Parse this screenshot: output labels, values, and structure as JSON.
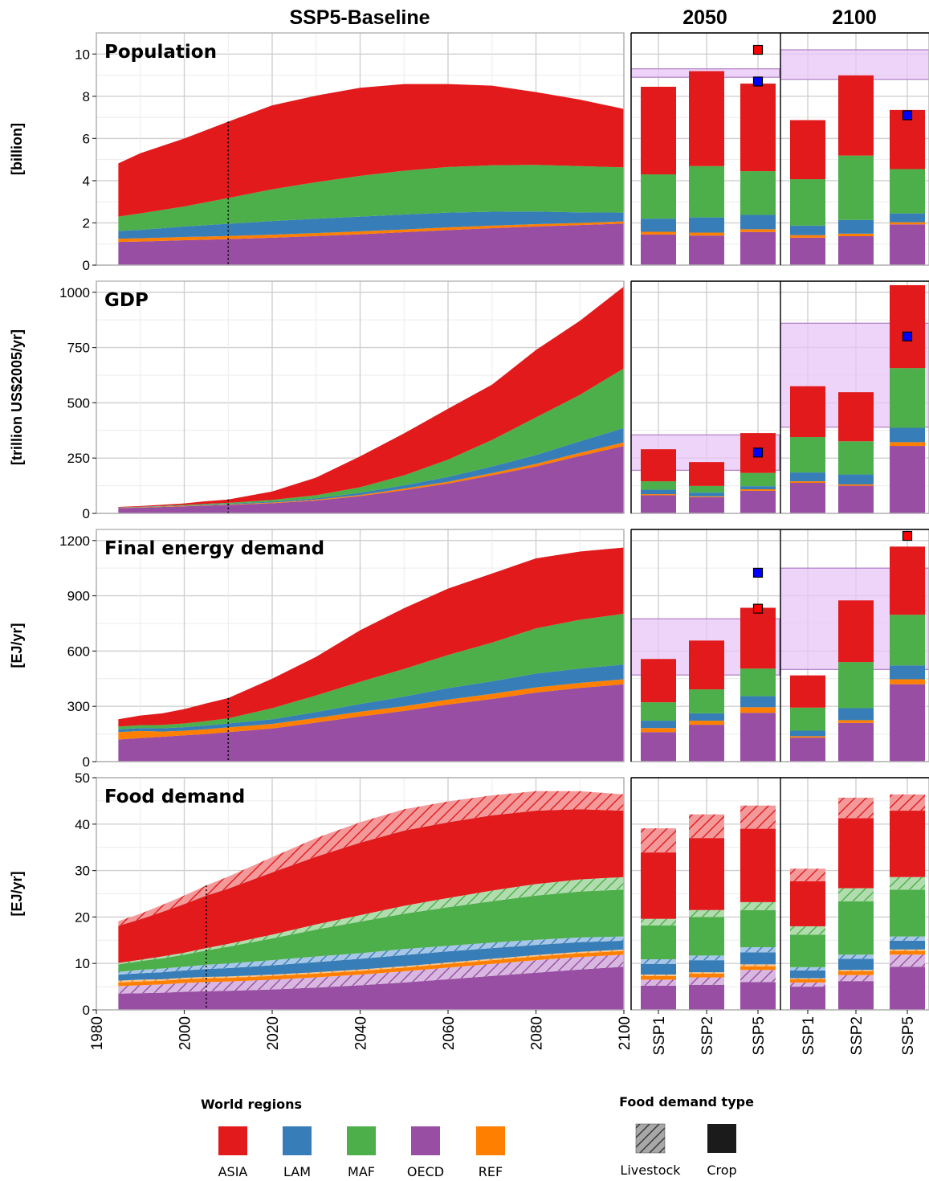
{
  "figure": {
    "column_strips": [
      "SSP5-Baseline",
      "2050",
      "2100"
    ],
    "region_colors": {
      "ASIA": "#e31a1c",
      "LAM": "#377eb8",
      "MAF": "#4daf4a",
      "OECD": "#984ea3",
      "REF": "#ff7f00"
    },
    "range_band_color": "#e8c6f6",
    "marker_colors": {
      "red": "#ff0000",
      "blue": "#0000ff"
    }
  },
  "legend": {
    "regions_title": "World regions",
    "regions": [
      "ASIA",
      "LAM",
      "MAF",
      "OECD",
      "REF"
    ],
    "food_type_title": "Food demand type",
    "food_types": [
      "Livestock",
      "Crop"
    ]
  },
  "chart_data": [
    {
      "type": "area",
      "title": "Population",
      "ylabel": "[billion]",
      "ylim": [
        0,
        11
      ],
      "yticks": [
        0,
        2,
        4,
        6,
        8,
        10
      ],
      "xlim": [
        1980,
        2100
      ],
      "xticks": [
        1980,
        2000,
        2020,
        2040,
        2060,
        2080,
        2100
      ],
      "history_end": 2010,
      "x": [
        1985,
        1990,
        2000,
        2010,
        2020,
        2030,
        2040,
        2050,
        2060,
        2070,
        2080,
        2090,
        2100
      ],
      "series": [
        {
          "name": "OECD",
          "values": [
            1.1,
            1.12,
            1.18,
            1.23,
            1.3,
            1.38,
            1.46,
            1.56,
            1.66,
            1.75,
            1.83,
            1.9,
            1.97
          ]
        },
        {
          "name": "REF",
          "values": [
            0.15,
            0.15,
            0.15,
            0.15,
            0.14,
            0.14,
            0.14,
            0.13,
            0.13,
            0.12,
            0.11,
            0.1,
            0.1
          ]
        },
        {
          "name": "LAM",
          "values": [
            0.37,
            0.4,
            0.5,
            0.58,
            0.65,
            0.68,
            0.7,
            0.71,
            0.7,
            0.66,
            0.6,
            0.5,
            0.42
          ]
        },
        {
          "name": "MAF",
          "values": [
            0.68,
            0.78,
            0.95,
            1.22,
            1.5,
            1.73,
            1.93,
            2.07,
            2.16,
            2.2,
            2.21,
            2.19,
            2.14
          ]
        },
        {
          "name": "ASIA",
          "values": [
            2.52,
            2.85,
            3.22,
            3.62,
            3.98,
            4.1,
            4.17,
            4.11,
            3.93,
            3.77,
            3.45,
            3.15,
            2.77
          ]
        }
      ],
      "bars": {
        "2050": {
          "SSP1": [
            1.45,
            0.13,
            0.62,
            2.1,
            4.15
          ],
          "SSP2": [
            1.4,
            0.14,
            0.72,
            2.43,
            4.5
          ],
          "SSP5": [
            1.57,
            0.13,
            0.68,
            2.07,
            4.15
          ]
        },
        "2100": {
          "SSP1": [
            1.3,
            0.12,
            0.45,
            2.2,
            2.8
          ],
          "SSP2": [
            1.37,
            0.12,
            0.65,
            3.05,
            3.8
          ],
          "SSP5": [
            1.93,
            0.1,
            0.42,
            2.1,
            2.8
          ]
        }
      },
      "ranges": {
        "2050": [
          8.9,
          9.3
        ],
        "2100": [
          8.8,
          10.2
        ]
      },
      "markers": {
        "2050": [
          {
            "scenario": "SSP5",
            "value": 10.2,
            "color": "red"
          },
          {
            "scenario": "SSP5",
            "value": 8.7,
            "color": "blue"
          }
        ],
        "2100": [
          {
            "scenario": "SSP5",
            "value": 7.1,
            "color": "blue"
          }
        ]
      }
    },
    {
      "type": "area",
      "title": "GDP",
      "ylabel": "[trillion US$2005/yr]",
      "ylim": [
        0,
        1050
      ],
      "yticks": [
        0,
        250,
        500,
        750,
        1000
      ],
      "xlim": [
        1980,
        2100
      ],
      "xticks": [
        1980,
        2000,
        2020,
        2040,
        2060,
        2080,
        2100
      ],
      "history_end": 2010,
      "x": [
        1985,
        1990,
        2000,
        2005,
        2010,
        2020,
        2030,
        2040,
        2050,
        2060,
        2070,
        2080,
        2090,
        2100
      ],
      "series": [
        {
          "name": "OECD",
          "values": [
            24,
            26,
            32,
            35,
            38,
            46,
            58,
            78,
            105,
            135,
            172,
            212,
            260,
            305
          ]
        },
        {
          "name": "REF",
          "values": [
            1,
            1.5,
            2,
            2,
            2.5,
            3,
            4,
            5,
            7,
            8,
            10,
            12,
            14,
            16
          ]
        },
        {
          "name": "LAM",
          "values": [
            1,
            1.5,
            2,
            3,
            3,
            4,
            6,
            10,
            15,
            22,
            30,
            40,
            52,
            65
          ]
        },
        {
          "name": "MAF",
          "values": [
            1,
            1,
            2,
            3,
            4,
            8,
            14,
            25,
            45,
            78,
            120,
            170,
            210,
            270
          ]
        },
        {
          "name": "ASIA",
          "values": [
            2,
            3,
            7,
            12,
            15,
            38,
            80,
            140,
            190,
            230,
            250,
            305,
            335,
            370
          ]
        }
      ],
      "bars": {
        "2050": {
          "SSP1": [
            82,
            5,
            20,
            38,
            145
          ],
          "SSP2": [
            73,
            4,
            17,
            30,
            108
          ],
          "SSP5": [
            102,
            7,
            14,
            60,
            180
          ]
        },
        "2100": {
          "SSP1": [
            138,
            7,
            40,
            160,
            230
          ],
          "SSP2": [
            125,
            6,
            45,
            150,
            222
          ],
          "SSP5": [
            305,
            17,
            65,
            270,
            375
          ]
        }
      },
      "ranges": {
        "2050": [
          195,
          355
        ],
        "2100": [
          390,
          860
        ]
      },
      "markers": {
        "2050": [
          {
            "scenario": "SSP5",
            "value": 275,
            "color": "blue"
          }
        ],
        "2100": [
          {
            "scenario": "SSP5",
            "value": 800,
            "color": "blue"
          }
        ]
      }
    },
    {
      "type": "area",
      "title": "Final energy demand",
      "ylabel": "[EJ/yr]",
      "ylim": [
        0,
        1260
      ],
      "yticks": [
        0,
        300,
        600,
        900,
        1200
      ],
      "xlim": [
        1980,
        2100
      ],
      "xticks": [
        1980,
        2000,
        2020,
        2040,
        2060,
        2080,
        2100
      ],
      "history_end": 2010,
      "x": [
        1985,
        1990,
        1995,
        2000,
        2005,
        2010,
        2020,
        2030,
        2040,
        2050,
        2060,
        2070,
        2080,
        2090,
        2100
      ],
      "series": [
        {
          "name": "OECD",
          "values": [
            120,
            128,
            135,
            143,
            150,
            160,
            180,
            212,
            245,
            275,
            310,
            340,
            375,
            400,
            420
          ]
        },
        {
          "name": "REF",
          "values": [
            40,
            38,
            28,
            25,
            26,
            26,
            25,
            25,
            26,
            26,
            27,
            28,
            28,
            27,
            27
          ]
        },
        {
          "name": "LAM",
          "values": [
            15,
            16,
            18,
            19,
            20,
            21,
            25,
            32,
            42,
            52,
            62,
            68,
            75,
            78,
            80
          ]
        },
        {
          "name": "MAF",
          "values": [
            15,
            16,
            18,
            20,
            24,
            28,
            60,
            90,
            120,
            150,
            180,
            210,
            245,
            265,
            275
          ]
        },
        {
          "name": "ASIA",
          "values": [
            40,
            52,
            63,
            78,
            96,
            110,
            160,
            210,
            280,
            330,
            360,
            375,
            380,
            370,
            360
          ]
        }
      ],
      "bars": {
        "2050": {
          "SSP1": [
            160,
            22,
            40,
            100,
            235
          ],
          "SSP2": [
            200,
            22,
            40,
            130,
            265
          ],
          "SSP5": [
            265,
            30,
            60,
            150,
            330
          ]
        },
        "2100": {
          "SSP1": [
            130,
            8,
            30,
            125,
            175
          ],
          "SSP2": [
            210,
            15,
            65,
            250,
            335
          ],
          "SSP5": [
            420,
            27,
            75,
            275,
            370
          ]
        }
      },
      "ranges": {
        "2050": [
          470,
          775
        ],
        "2100": [
          500,
          1050
        ]
      },
      "markers": {
        "2050": [
          {
            "scenario": "SSP5",
            "value": 1025,
            "color": "blue"
          },
          {
            "scenario": "SSP5",
            "value": 830,
            "color": "red"
          }
        ],
        "2100": [
          {
            "scenario": "SSP5",
            "value": 1225,
            "color": "red"
          }
        ]
      }
    },
    {
      "type": "area",
      "title": "Food demand",
      "ylabel": "[EJ/yr]",
      "ylim": [
        0,
        50
      ],
      "yticks": [
        0,
        10,
        20,
        30,
        40,
        50
      ],
      "xlim": [
        1980,
        2100
      ],
      "xticks": [
        1980,
        2000,
        2020,
        2040,
        2060,
        2080,
        2100
      ],
      "history_end": 2005,
      "stack_parts": [
        "Crop",
        "Livestock"
      ],
      "x": [
        1985,
        1990,
        1995,
        2000,
        2005,
        2010,
        2020,
        2030,
        2040,
        2050,
        2060,
        2070,
        2080,
        2090,
        2100
      ],
      "series": [
        {
          "name": "OECD",
          "crop": [
            3.5,
            3.6,
            3.7,
            3.9,
            4.0,
            4.1,
            4.4,
            4.8,
            5.3,
            5.9,
            6.6,
            7.3,
            8.0,
            8.7,
            9.3
          ],
          "livestock": [
            1.6,
            1.7,
            1.8,
            1.9,
            2.0,
            2.0,
            2.1,
            2.2,
            2.3,
            2.4,
            2.5,
            2.6,
            2.7,
            2.7,
            2.6
          ]
        },
        {
          "name": "REF",
          "crop": [
            0.8,
            0.8,
            0.8,
            0.8,
            0.8,
            0.8,
            0.8,
            0.8,
            0.8,
            0.8,
            0.8,
            0.8,
            0.8,
            0.8,
            0.8
          ],
          "livestock": [
            0.4,
            0.4,
            0.3,
            0.3,
            0.3,
            0.3,
            0.3,
            0.3,
            0.3,
            0.3,
            0.3,
            0.3,
            0.3,
            0.3,
            0.3
          ]
        },
        {
          "name": "LAM",
          "crop": [
            1.3,
            1.4,
            1.5,
            1.6,
            1.7,
            1.8,
            2.0,
            2.2,
            2.3,
            2.4,
            2.4,
            2.3,
            2.2,
            2.1,
            1.9
          ],
          "livestock": [
            0.6,
            0.7,
            0.8,
            0.8,
            0.9,
            1.0,
            1.1,
            1.2,
            1.2,
            1.3,
            1.2,
            1.2,
            1.1,
            1.0,
            0.9
          ]
        },
        {
          "name": "MAF",
          "crop": [
            1.6,
            1.9,
            2.2,
            2.6,
            3.1,
            3.6,
            4.7,
            5.8,
            6.8,
            7.6,
            8.3,
            8.9,
            9.5,
            9.9,
            10.1
          ],
          "livestock": [
            0.3,
            0.3,
            0.4,
            0.4,
            0.5,
            0.6,
            0.8,
            1.1,
            1.4,
            1.7,
            2.0,
            2.3,
            2.5,
            2.6,
            2.7
          ]
        },
        {
          "name": "ASIA",
          "crop": [
            8.0,
            8.7,
            9.6,
            10.5,
            11.3,
            11.9,
            13.4,
            14.6,
            15.6,
            16.2,
            16.3,
            16.2,
            15.8,
            15.1,
            14.3
          ],
          "livestock": [
            1.0,
            1.2,
            1.5,
            1.8,
            2.2,
            2.6,
            3.3,
            4.0,
            4.4,
            4.6,
            4.5,
            4.3,
            4.2,
            3.9,
            3.5
          ]
        }
      ],
      "bars": {
        "2050": {
          "SSP1": {
            "crop": [
              5.2,
              0.8,
              2.3,
              7.3,
              14.3
            ],
            "livestock": [
              1.3,
              0.3,
              1.0,
              1.4,
              5.2
            ]
          },
          "SSP2": {
            "crop": [
              5.4,
              0.8,
              2.6,
              8.3,
              15.5
            ],
            "livestock": [
              1.6,
              0.3,
              1.0,
              1.5,
              5.1
            ]
          },
          "SSP5": {
            "crop": [
              6.0,
              0.8,
              2.6,
              8.0,
              15.8
            ],
            "livestock": [
              2.6,
              0.4,
              1.1,
              1.7,
              5.0
            ]
          }
        },
        "2100": {
          "SSP1": {
            "crop": [
              5.0,
              0.7,
              1.7,
              7.0,
              9.7
            ],
            "livestock": [
              0.9,
              0.2,
              0.7,
              1.8,
              2.7
            ]
          },
          "SSP2": {
            "crop": [
              6.2,
              0.8,
              2.4,
              11.5,
              15.1
            ],
            "livestock": [
              1.3,
              0.3,
              0.9,
              2.8,
              4.4
            ]
          },
          "SSP5": {
            "crop": [
              9.3,
              0.8,
              1.9,
              10.1,
              14.3
            ],
            "livestock": [
              2.6,
              0.3,
              0.9,
              2.7,
              3.5
            ]
          }
        }
      }
    }
  ],
  "bar_categories": [
    "SSP1",
    "SSP2",
    "SSP5"
  ]
}
